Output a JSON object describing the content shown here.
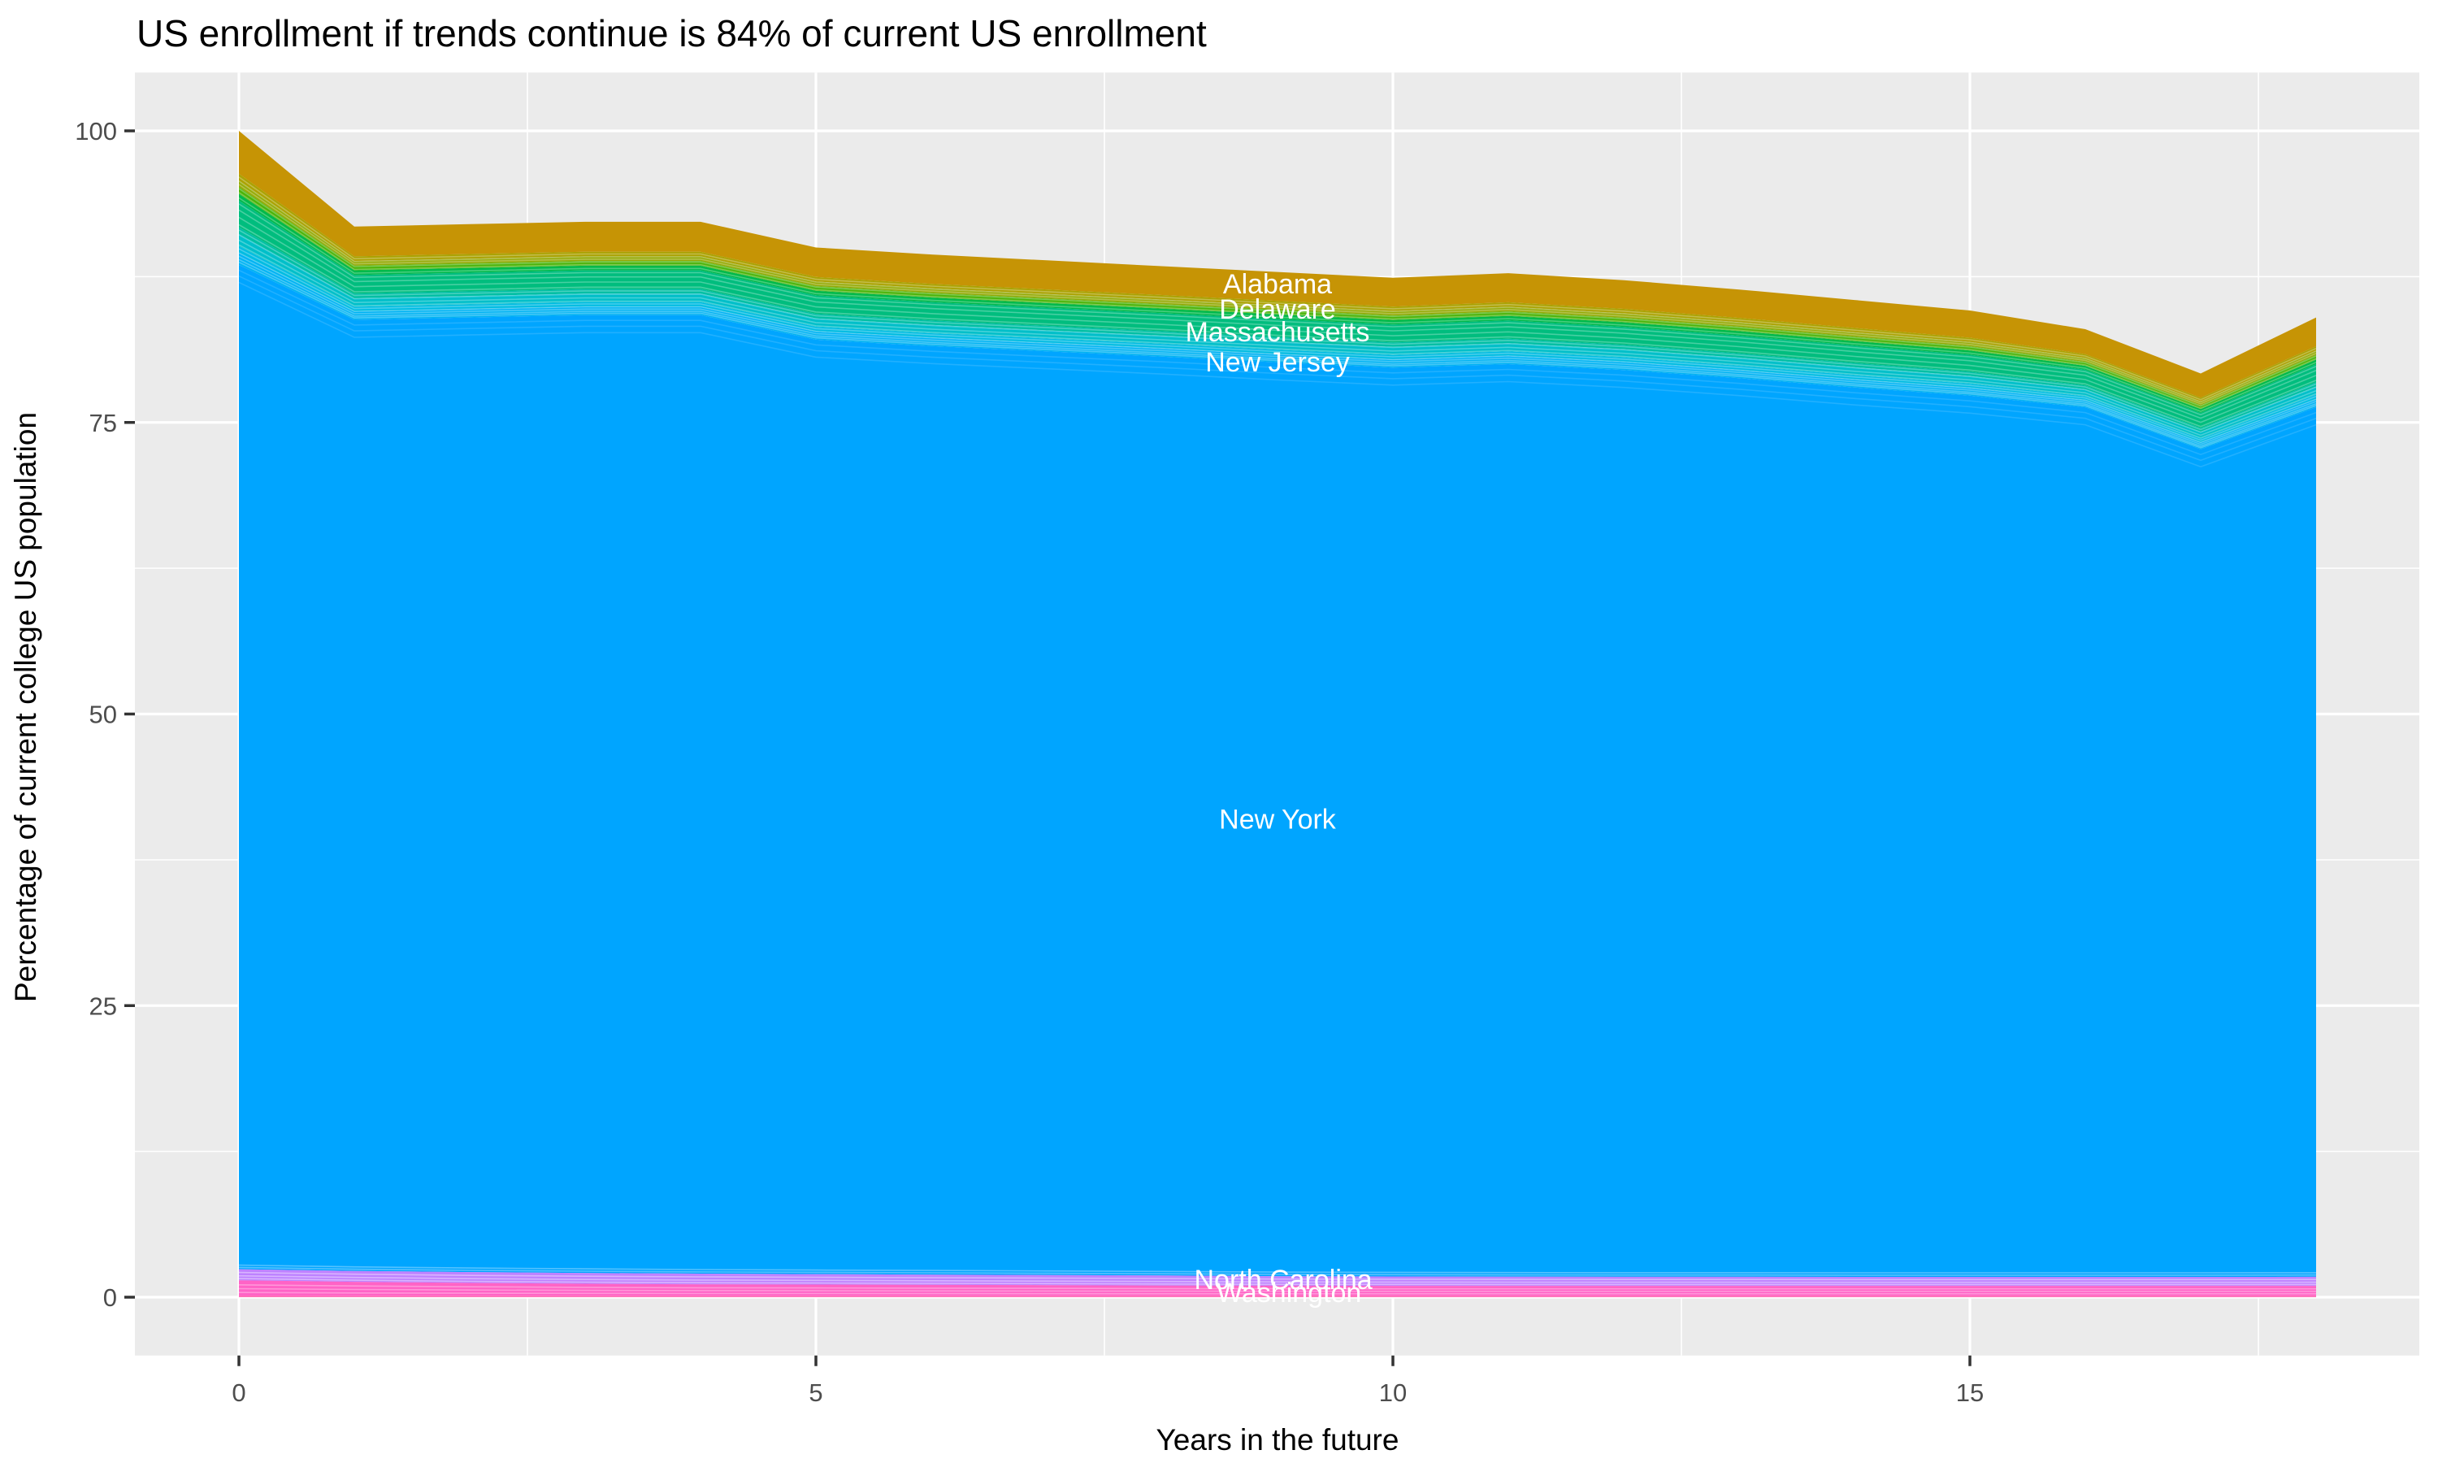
{
  "title": "US enrollment if trends continue is 84% of current US enrollment",
  "colors": {
    "panel_background": "#EBEBEB",
    "gridline": "#FFFFFF",
    "tick_mark": "#333333",
    "tick_text": "#4D4D4D",
    "title_text": "#000000",
    "label_text": "#FFFFFF"
  },
  "chart_data": {
    "type": "area",
    "stacked": true,
    "title": "US enrollment if trends continue is 84% of current US enrollment",
    "xlabel": "Years in the future",
    "ylabel": "Percentage of current college US population",
    "xlim": [
      0,
      18
    ],
    "ylim": [
      0,
      100
    ],
    "x_ticks": [
      0,
      5,
      10,
      15
    ],
    "x_minor_ticks": [
      2.5,
      7.5,
      12.5,
      17.5
    ],
    "y_ticks": [
      0,
      25,
      50,
      75,
      100
    ],
    "y_minor_ticks": [
      12.5,
      37.5,
      62.5,
      87.5
    ],
    "grid": true,
    "legend": "none",
    "years": [
      0,
      1,
      2,
      3,
      4,
      5,
      6,
      7,
      8,
      9,
      10,
      11,
      12,
      13,
      14,
      15,
      16,
      17,
      18
    ],
    "series_boundaries": {
      "total": [
        100.0,
        91.8,
        92.0,
        92.2,
        92.2,
        90.0,
        89.4,
        88.9,
        88.4,
        87.9,
        87.4,
        87.8,
        87.2,
        86.4,
        85.5,
        84.6,
        83.0,
        79.2,
        84.0
      ],
      "new_york_top": [
        88.5,
        83.8,
        84.0,
        84.2,
        84.2,
        82.1,
        81.55,
        81.1,
        80.65,
        80.15,
        79.7,
        80.0,
        79.5,
        78.8,
        78.0,
        77.3,
        76.3,
        72.7,
        76.3
      ],
      "new_york_bottom": [
        2.4,
        2.25,
        2.15,
        2.08,
        2.02,
        1.98,
        1.94,
        1.9,
        1.86,
        1.8,
        1.78,
        1.76,
        1.75,
        1.75,
        1.74,
        1.74,
        1.74,
        1.74,
        1.75
      ],
      "violet_bottom": [
        1.45,
        1.32,
        1.22,
        1.15,
        1.1,
        1.08,
        1.05,
        1.03,
        1.0,
        0.98,
        0.97,
        0.97,
        0.97,
        0.97,
        0.97,
        0.97,
        0.97,
        0.97,
        0.97
      ],
      "pink_bottom": [
        0.14,
        0.12,
        0.12,
        0.12,
        0.12,
        0.12,
        0.12,
        0.12,
        0.12,
        0.12,
        0.12,
        0.12,
        0.12,
        0.12,
        0.12,
        0.12,
        0.12,
        0.12,
        0.12
      ]
    },
    "upper_layers": [
      {
        "name": "gold-band",
        "color": "#C69405",
        "from": 0.0,
        "to": 0.32
      },
      {
        "name": "olive-band-1",
        "color": "#ABA203",
        "from": 0.32,
        "to": 0.37
      },
      {
        "name": "olive-band-2",
        "color": "#95AA06",
        "from": 0.37,
        "to": 0.42
      },
      {
        "name": "chartreuse-band",
        "color": "#4CB409",
        "from": 0.42,
        "to": 0.47
      },
      {
        "name": "green-band",
        "color": "#00B94B",
        "from": 0.47,
        "to": 0.52
      },
      {
        "name": "emerald-band",
        "color": "#00BD7E",
        "from": 0.52,
        "to": 0.72
      },
      {
        "name": "seagreen-band",
        "color": "#00BFA4",
        "from": 0.72,
        "to": 0.77
      },
      {
        "name": "teal-band",
        "color": "#00BFC9",
        "from": 0.77,
        "to": 0.86
      },
      {
        "name": "cyan-band",
        "color": "#00BCE2",
        "from": 0.86,
        "to": 0.91
      },
      {
        "name": "lightblue-band",
        "color": "#00B3F3",
        "from": 0.91,
        "to": 1.0
      }
    ],
    "main_layers": [
      {
        "name": "new-york-band",
        "color": "#00A5FF"
      },
      {
        "name": "violet-band",
        "color": "#BE82FF"
      },
      {
        "name": "pink-band",
        "color": "#FF63C6"
      },
      {
        "name": "bottom-sliver",
        "color": "#FF6FB7"
      }
    ],
    "state_labels": [
      {
        "text": "Alabama",
        "x": 9.0,
        "y": 86.9
      },
      {
        "text": "Delaware",
        "x": 9.0,
        "y": 84.75
      },
      {
        "text": "Massachusetts",
        "x": 9.0,
        "y": 82.8
      },
      {
        "text": "New Jersey",
        "x": 9.0,
        "y": 80.2
      },
      {
        "text": "New York",
        "x": 9.0,
        "y": 41.0
      },
      {
        "text": "North Carolina",
        "x": 9.05,
        "y": 1.55
      },
      {
        "text": "Washington",
        "x": 9.1,
        "y": 0.42
      }
    ]
  }
}
